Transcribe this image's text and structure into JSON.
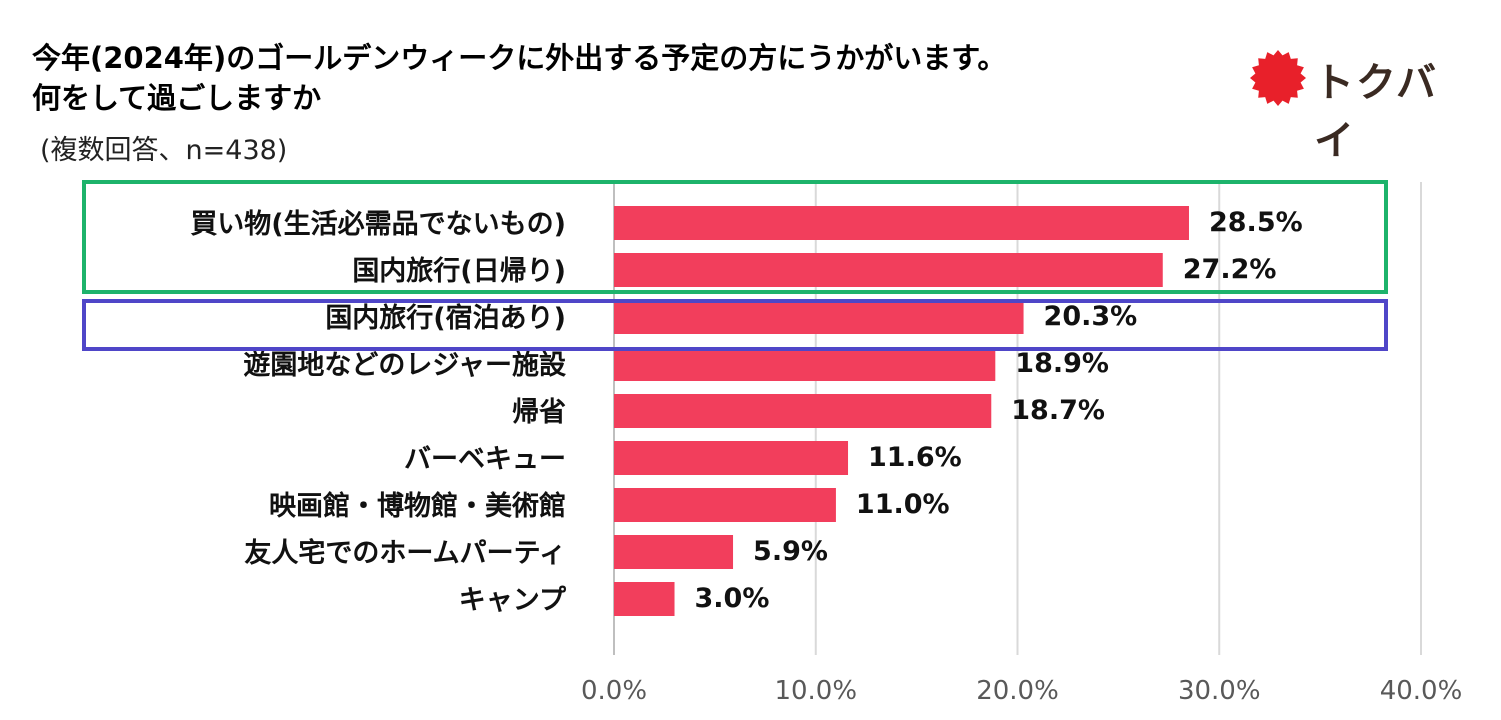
{
  "title_line1": "今年(2024年)のゴールデンウィークに外出する予定の方にうかがいます。",
  "title_line2": "何をして過ごしますか",
  "subtitle": "(複数回答、n=438)",
  "logo": {
    "text": "トクバイ",
    "icon": "red-sun-burst-icon"
  },
  "colors": {
    "bar": "#F23E5C",
    "grid": "#D9D9D9",
    "highlight_green": "#1DB36B",
    "highlight_blue": "#4F46C8"
  },
  "chart_data": {
    "type": "bar",
    "orientation": "horizontal",
    "categories": [
      "買い物(生活必需品でないもの)",
      "国内旅行(日帰り)",
      "国内旅行(宿泊あり)",
      "遊園地などのレジャー施設",
      "帰省",
      "バーベキュー",
      "映画館・博物館・美術館",
      "友人宅でのホームパーティ",
      "キャンプ"
    ],
    "values": [
      28.5,
      27.2,
      20.3,
      18.9,
      18.7,
      11.6,
      11.0,
      5.9,
      3.0
    ],
    "value_labels": [
      "28.5%",
      "27.2%",
      "20.3%",
      "18.9%",
      "18.7%",
      "11.6%",
      "11.0%",
      "5.9%",
      "3.0%"
    ],
    "xlim": [
      0,
      40
    ],
    "xticks": [
      0,
      10,
      20,
      30,
      40
    ],
    "xtick_labels": [
      "0.0%",
      "10.0%",
      "20.0%",
      "30.0%",
      "40.0%"
    ],
    "grid": true,
    "highlight_groups": [
      {
        "color": "green",
        "categories": [
          "買い物(生活必需品でないもの)",
          "国内旅行(日帰り)"
        ]
      },
      {
        "color": "blue",
        "categories": [
          "国内旅行(宿泊あり)"
        ]
      }
    ]
  }
}
